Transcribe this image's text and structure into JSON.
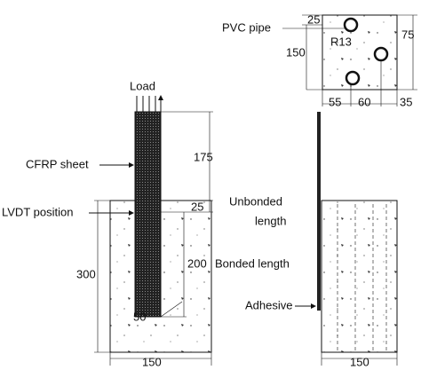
{
  "top_view": {
    "pipe_label": "PVC pipe",
    "dim_top": 25,
    "dim_depth": 75,
    "dim_width": 150,
    "radius": "R13",
    "spacing": [
      55,
      60,
      35
    ]
  },
  "front_view": {
    "load": "Load",
    "dim_free": 175,
    "sheet_label": "CFRP sheet",
    "lvdt_label": "LVDT position",
    "dim_unbonded": 25,
    "dim_height": 300,
    "dim_bonded": 200,
    "bonded_label": "Bonded length",
    "dim_bottom": 50,
    "dim_width": 150
  },
  "side_view": {
    "unbonded_label": [
      "Unbonded",
      "length"
    ],
    "adhesive_label": "Adhesive",
    "dim_width": 150
  }
}
